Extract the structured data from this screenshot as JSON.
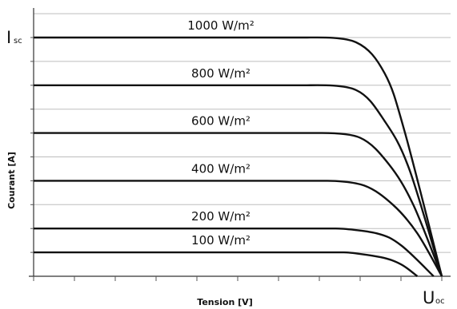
{
  "chart_data": {
    "type": "line",
    "title": "",
    "xlabel": "Tension [V]",
    "ylabel": "Courant [A]",
    "xlim": [
      0,
      10
    ],
    "ylim": [
      0,
      1.0
    ],
    "grid": "horizontal",
    "x_ticks": 10,
    "y_grid_lines": 11,
    "isc_label": {
      "main": "I",
      "sub": "sc"
    },
    "uoc_label": {
      "main": "U",
      "sub": "oc"
    },
    "series": [
      {
        "name": "1000 W/m²",
        "label": "1000 W/m²",
        "isc": 1.0,
        "knee_voltage": 6.7,
        "voc": 10.0,
        "points": [
          [
            0,
            1.0
          ],
          [
            6.7,
            1.0
          ],
          [
            7.9,
            0.98
          ],
          [
            8.6,
            0.85
          ],
          [
            9.1,
            0.6
          ],
          [
            10.0,
            0.0
          ]
        ]
      },
      {
        "name": "800 W/m²",
        "label": "800 W/m²",
        "isc": 0.8,
        "knee_voltage": 6.7,
        "voc": 10.0,
        "points": [
          [
            0,
            0.8
          ],
          [
            6.7,
            0.8
          ],
          [
            7.9,
            0.78
          ],
          [
            8.6,
            0.65
          ],
          [
            9.2,
            0.45
          ],
          [
            10.0,
            0.0
          ]
        ]
      },
      {
        "name": "600 W/m²",
        "label": "600 W/m²",
        "isc": 0.6,
        "knee_voltage": 7.0,
        "voc": 10.0,
        "points": [
          [
            0,
            0.6
          ],
          [
            7.0,
            0.6
          ],
          [
            8.0,
            0.58
          ],
          [
            8.7,
            0.47
          ],
          [
            9.3,
            0.3
          ],
          [
            10.0,
            0.0
          ]
        ]
      },
      {
        "name": "400 W/m²",
        "label": "400 W/m²",
        "isc": 0.4,
        "knee_voltage": 7.2,
        "voc": 10.0,
        "points": [
          [
            0,
            0.4
          ],
          [
            7.2,
            0.4
          ],
          [
            8.1,
            0.38
          ],
          [
            8.8,
            0.3
          ],
          [
            9.4,
            0.18
          ],
          [
            10.0,
            0.0
          ]
        ]
      },
      {
        "name": "200 W/m²",
        "label": "200 W/m²",
        "isc": 0.2,
        "knee_voltage": 7.4,
        "voc": 9.8,
        "points": [
          [
            0,
            0.2
          ],
          [
            7.4,
            0.2
          ],
          [
            8.4,
            0.18
          ],
          [
            9.0,
            0.13
          ],
          [
            9.8,
            0.0
          ]
        ]
      },
      {
        "name": "100 W/m²",
        "label": "100 W/m²",
        "isc": 0.1,
        "knee_voltage": 7.6,
        "voc": 9.4,
        "points": [
          [
            0,
            0.1
          ],
          [
            7.6,
            0.1
          ],
          [
            8.5,
            0.08
          ],
          [
            9.0,
            0.05
          ],
          [
            9.4,
            0.0
          ]
        ]
      }
    ]
  }
}
